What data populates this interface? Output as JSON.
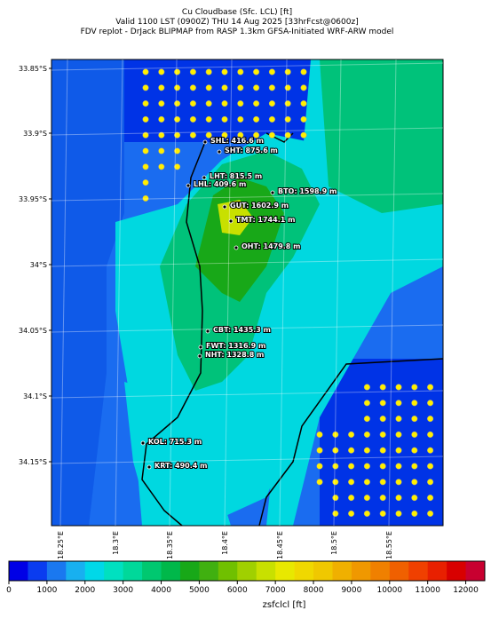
{
  "header": {
    "title_lines": [
      "Cu Cloudbase (Sfc. LCL) [ft]",
      "Valid 1100 LST (0900Z) THU 14 Aug 2025 [33hrFcst@0600z]",
      "FDV replot - DrJack BLIPMAP from RASP 1.3km GFSA-Initiated WRF-ARW model"
    ]
  },
  "map": {
    "lat_labels": [
      "33.85°S",
      "33.9°S",
      "33.95°S",
      "34°S",
      "34.05°S",
      "34.1°S",
      "34.15°S"
    ],
    "lon_labels": [
      "18.25°E",
      "18.3°E",
      "18.35°E",
      "18.4°E",
      "18.45°E",
      "18.5°E",
      "18.55°E"
    ],
    "stations": [
      "SHL: 416.6 m",
      "SHT: 875.6 m",
      "LHT: 815.5 m",
      "LHL: 409.6 m",
      "BTO: 1598.9 m",
      "GUT: 1602.9 m",
      "TMT: 1744.1 m",
      "OHT: 1479.8 m",
      "CBT: 1435.3 m",
      "FWT: 1316.9 m",
      "NHT: 1328.8 m",
      "KOL: 715.3 m",
      "KRT: 490.4 m"
    ]
  },
  "colorbar": {
    "label": "zsfclcl [ft]",
    "range": [
      0,
      12500
    ],
    "ticks": [
      0,
      1000,
      2000,
      3000,
      4000,
      5000,
      6000,
      7000,
      8000,
      9000,
      10000,
      11000,
      12000
    ]
  }
}
